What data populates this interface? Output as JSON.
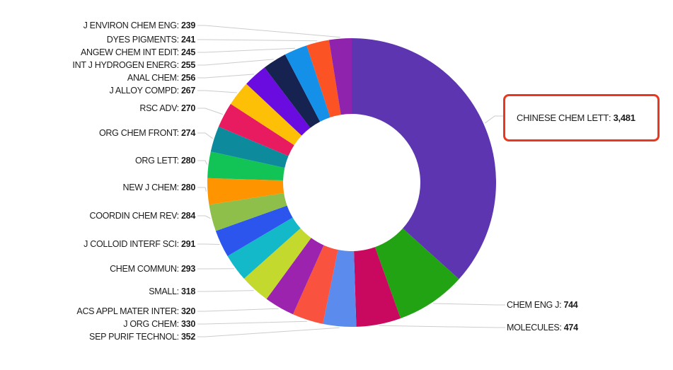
{
  "chart_data": {
    "type": "donut",
    "title": "",
    "separator": ": ",
    "legend_position": "none",
    "label_style": "callout-leader-lines",
    "leader_line_color": "#cccccc",
    "highlight_border_color": "#e8381f",
    "background_color": "#ffffff",
    "series": [
      {
        "label": "CHINESE CHEM LETT",
        "value": 3481,
        "display_value": "3,481",
        "color": "#5e35b1",
        "highlighted": true
      },
      {
        "label": "CHEM ENG J",
        "value": 744,
        "color": "#21a313"
      },
      {
        "label": "MOLECULES",
        "value": 474,
        "color": "#c9085f"
      },
      {
        "label": "SEP PURIF TECHNOL",
        "value": 352,
        "color": "#5c8bee"
      },
      {
        "label": "J ORG CHEM",
        "value": 330,
        "color": "#f9523f"
      },
      {
        "label": "ACS APPL MATER INTER",
        "value": 320,
        "color": "#9c23ad"
      },
      {
        "label": "SMALL",
        "value": 318,
        "color": "#c3d92e"
      },
      {
        "label": "CHEM COMMUN",
        "value": 293,
        "color": "#13b9c9"
      },
      {
        "label": "J COLLOID INTERF SCI",
        "value": 291,
        "color": "#2c55ee"
      },
      {
        "label": "COORDIN CHEM REV",
        "value": 284,
        "color": "#8ebf4b"
      },
      {
        "label": "NEW J CHEM",
        "value": 280,
        "color": "#fe9500"
      },
      {
        "label": "ORG LETT",
        "value": 280,
        "color": "#12c455"
      },
      {
        "label": "ORG CHEM FRONT",
        "value": 274,
        "color": "#0e8a9d"
      },
      {
        "label": "RSC ADV",
        "value": 270,
        "color": "#e81a60"
      },
      {
        "label": "J ALLOY COMPD",
        "value": 267,
        "color": "#fdc006"
      },
      {
        "label": "ANAL CHEM",
        "value": 256,
        "color": "#6a0be0"
      },
      {
        "label": "INT J HYDROGEN ENERG",
        "value": 255,
        "color": "#16224f"
      },
      {
        "label": "ANGEW CHEM INT EDIT",
        "value": 245,
        "color": "#1490e8"
      },
      {
        "label": "DYES PIGMENTS",
        "value": 241,
        "color": "#fb5324"
      },
      {
        "label": "J ENVIRON CHEM ENG",
        "value": 239,
        "color": "#9023ad"
      }
    ]
  }
}
